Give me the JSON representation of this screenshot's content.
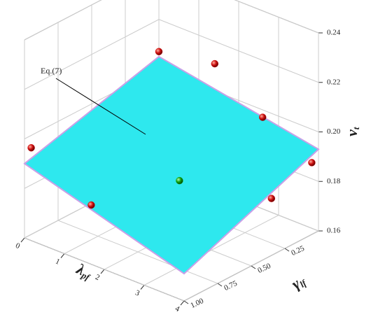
{
  "chart_data": {
    "type": "surface3d",
    "xlabel": {
      "text": "λ",
      "sub": "pf"
    },
    "ylabel": {
      "text": "γ",
      "sub": "lf"
    },
    "zlabel": {
      "text": "v",
      "sub": "t"
    },
    "annotation": "Eq.(7)",
    "xlim": [
      0,
      4
    ],
    "xticks": [
      0,
      1,
      2,
      3,
      4
    ],
    "ylim": [
      0,
      1
    ],
    "yticks": [
      {
        "value": 0.25,
        "label": "0.25"
      },
      {
        "value": 0.5,
        "label": "0.50"
      },
      {
        "value": 0.75,
        "label": "0.75"
      },
      {
        "value": 1,
        "label": "1.00"
      }
    ],
    "zlim": [
      0.16,
      0.24
    ],
    "zticks": [
      0.16,
      0.18,
      {
        "value": 0.2,
        "label": "0.20"
      },
      0.22,
      0.24
    ],
    "grid": true,
    "surface": {
      "color": "#2ee8ee",
      "x": [
        0,
        4
      ],
      "y": [
        0,
        1
      ],
      "z": [
        [
          0.205,
          0.19
        ],
        [
          0.193,
          0.171
        ]
      ]
    },
    "series": [
      {
        "color": "#d01010",
        "x": [
          0,
          1.4,
          2.6,
          4,
          4,
          1,
          0
        ],
        "y": [
          0,
          0,
          0,
          0.05,
          0.35,
          0.8,
          0.95
        ],
        "z": [
          0.207,
          0.211,
          0.197,
          0.189,
          0.183,
          0.174,
          0.195
        ]
      },
      {
        "color": "#10a010",
        "x": [
          2.2
        ],
        "y": [
          0.5
        ],
        "z": [
          0.183
        ]
      }
    ]
  }
}
